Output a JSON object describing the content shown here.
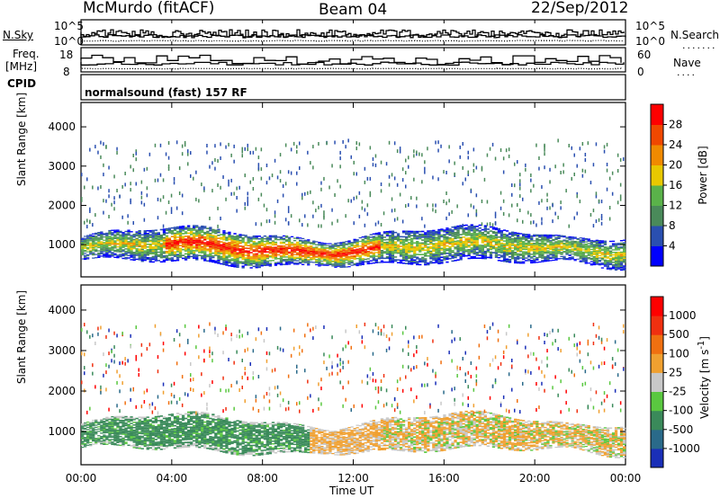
{
  "header": {
    "station": "McMurdo (fitACF)",
    "beam": "Beam 04",
    "date": "22/Sep/2012"
  },
  "status_panel": {
    "nsky_label": "N.Sky",
    "nsearch_label": "N.Search",
    "noise_ticks": [
      "10^5",
      "10^0"
    ],
    "freq_label_top": "Freq.",
    "freq_label_unit": "[MHz]",
    "freq_ticks": [
      "18",
      "8"
    ],
    "nave_label": "Nave",
    "nave_ticks": [
      "60",
      "0"
    ],
    "cpid_label": "CPID",
    "cpid_value": "normalsound (fast) 157 RF"
  },
  "chart_data": [
    {
      "type": "heatmap",
      "title": "",
      "xlabel": "Time UT",
      "ylabel": "Slant Range [km]",
      "xticks": [
        "00:00",
        "04:00",
        "08:00",
        "12:00",
        "16:00",
        "20:00",
        "00:00"
      ],
      "yticks": [
        "1000",
        "2000",
        "3000",
        "4000"
      ],
      "ylim": [
        180,
        4620
      ],
      "colorbar": {
        "label": "Power [dB]",
        "ticks": [
          "4",
          "8",
          "12",
          "16",
          "20",
          "24",
          "28"
        ],
        "colors": [
          "#0000ff",
          "#2a4fb0",
          "#4a8a5a",
          "#5ab24a",
          "#e8c800",
          "#f08a00",
          "#f04800",
          "#ff0000"
        ]
      }
    },
    {
      "type": "heatmap",
      "title": "",
      "xlabel": "Time UT",
      "ylabel": "Slant Range [km]",
      "xticks": [
        "00:00",
        "04:00",
        "08:00",
        "12:00",
        "16:00",
        "20:00",
        "00:00"
      ],
      "yticks": [
        "1000",
        "2000",
        "3000",
        "4000"
      ],
      "ylim": [
        180,
        4620
      ],
      "colorbar": {
        "label": "Velocity [m s^-1]",
        "ticks": [
          "1000",
          "500",
          "100",
          "25",
          "-25",
          "-100",
          "-500",
          "-1000"
        ],
        "colors": [
          "#1a2fb8",
          "#2a6a8a",
          "#3a8a5a",
          "#5ac840",
          "#c8c8c8",
          "#f0a030",
          "#f07010",
          "#f03010",
          "#ff0000"
        ]
      }
    }
  ],
  "x_axis_label": "Time UT"
}
